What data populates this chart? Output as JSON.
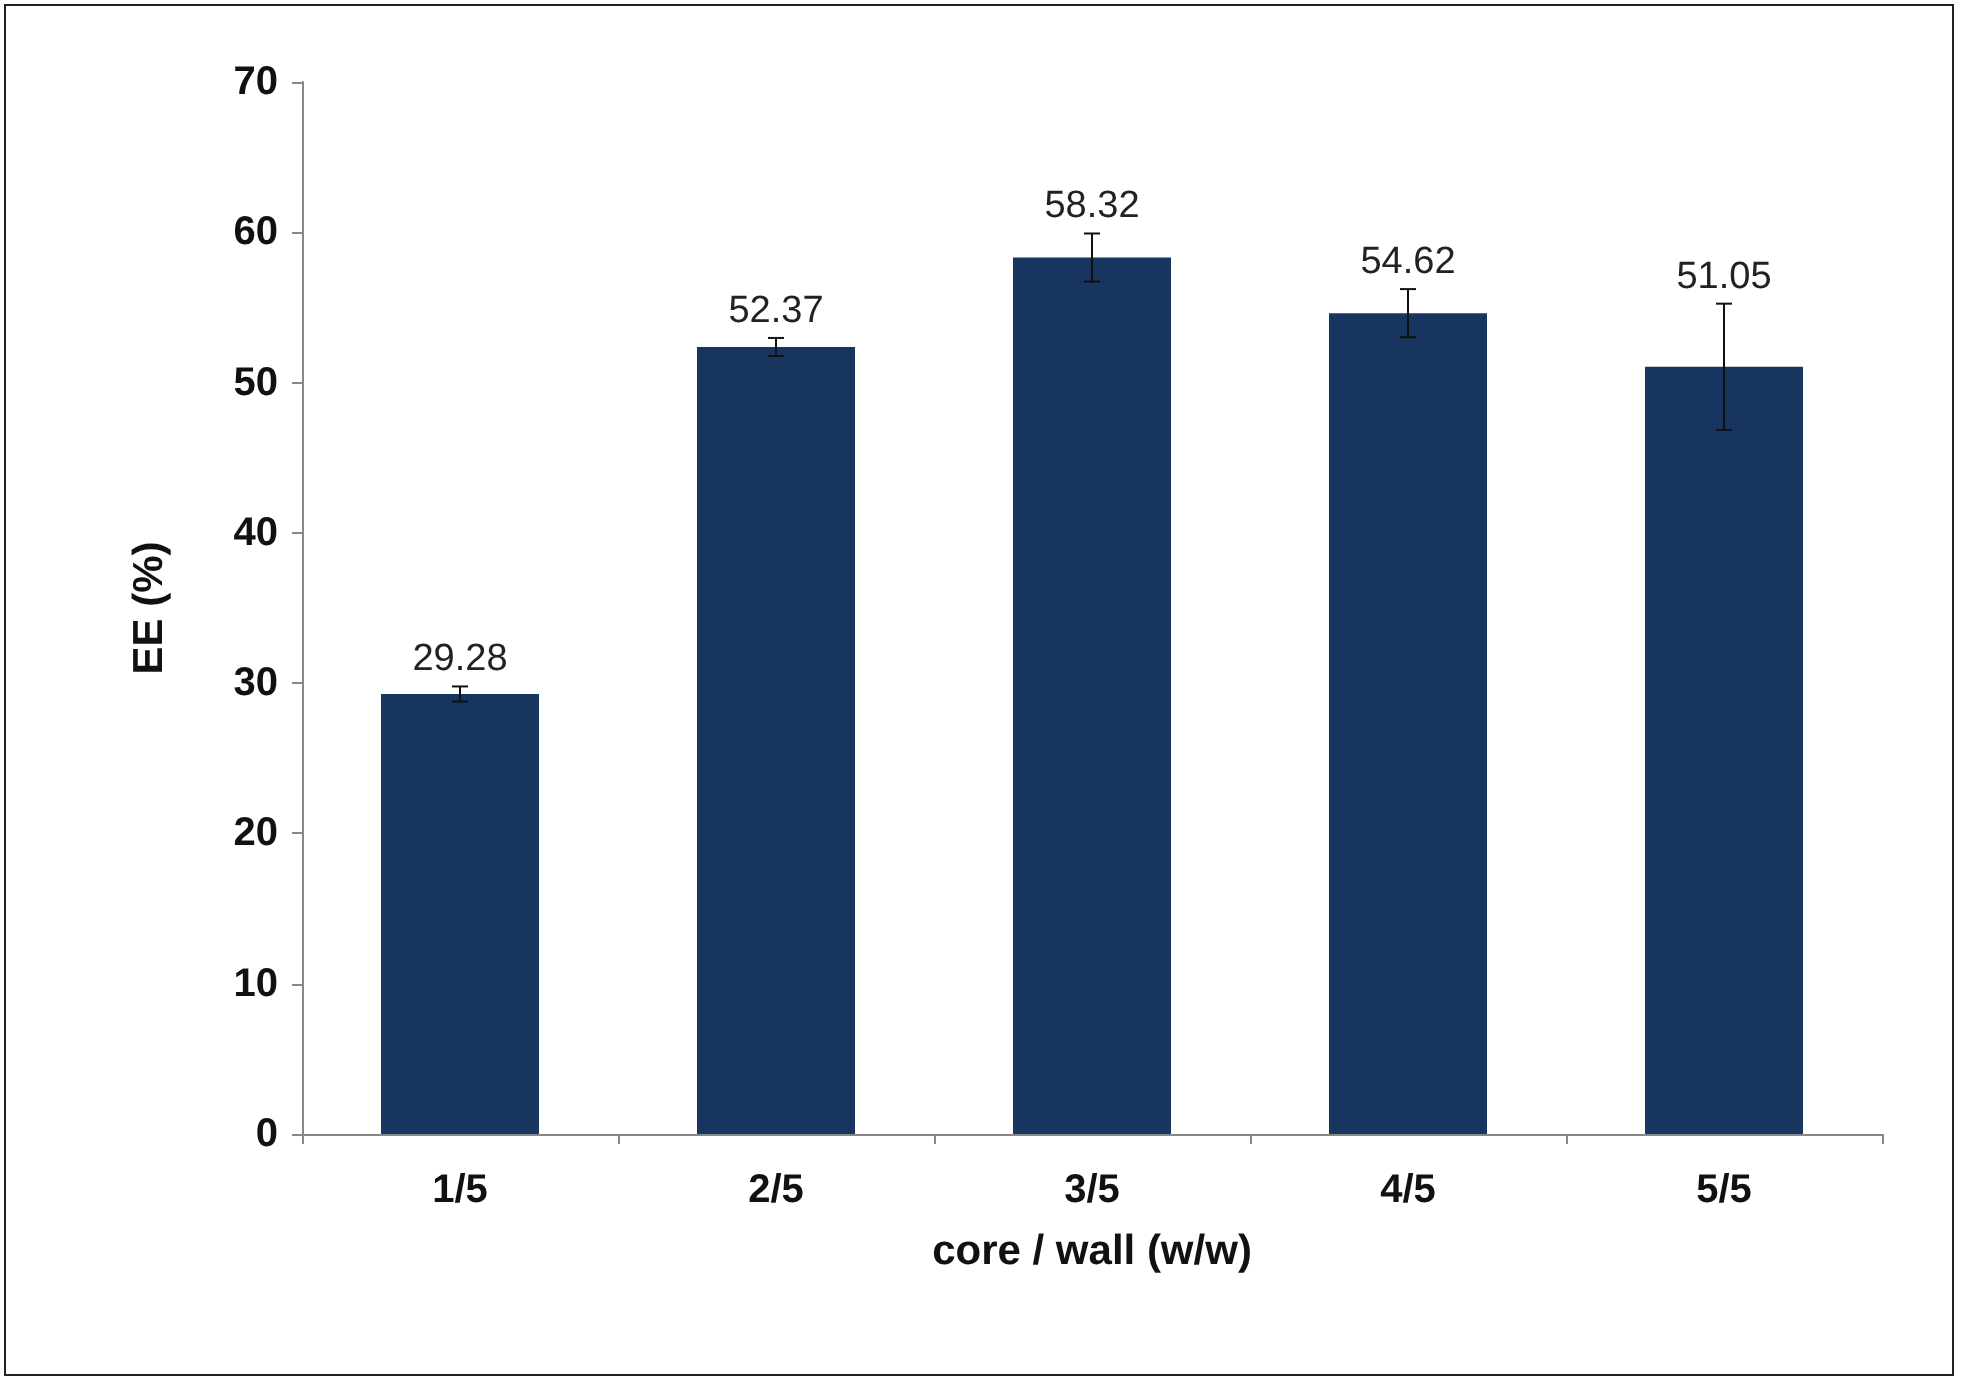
{
  "chart_data": {
    "type": "bar",
    "xlabel": "core / wall (w/w)",
    "ylabel": "EE (%)",
    "categories": [
      "1/5",
      "2/5",
      "3/5",
      "4/5",
      "5/5"
    ],
    "values": [
      29.28,
      52.37,
      58.32,
      54.62,
      51.05
    ],
    "errors": [
      0.5,
      0.6,
      1.6,
      1.6,
      4.2
    ],
    "color": "#17355e",
    "data_labels": true,
    "ylim": [
      0,
      70
    ],
    "yticks": [
      0,
      10,
      20,
      30,
      40,
      50,
      60,
      70
    ],
    "grid": false
  }
}
